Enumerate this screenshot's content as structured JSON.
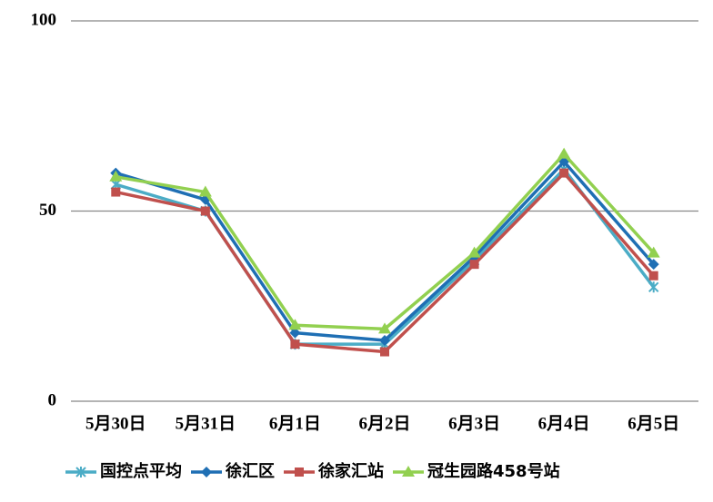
{
  "chart_data": {
    "type": "line",
    "categories": [
      "5月30日",
      "5月31日",
      "6月1日",
      "6月2日",
      "6月3日",
      "6月4日",
      "6月5日"
    ],
    "series": [
      {
        "name": "国控点平均",
        "color": "#4bacc6",
        "marker": "star",
        "values": [
          57,
          50,
          15,
          15,
          37,
          61,
          30
        ]
      },
      {
        "name": "徐汇区",
        "color": "#1f6fb4",
        "marker": "diamond",
        "values": [
          60,
          53,
          18,
          16,
          38,
          63,
          36
        ]
      },
      {
        "name": "徐家汇站",
        "color": "#c0504d",
        "marker": "square",
        "values": [
          55,
          50,
          15,
          13,
          36,
          60,
          33
        ]
      },
      {
        "name": "冠生园路458号站",
        "color": "#92d050",
        "marker": "triangle",
        "values": [
          59,
          55,
          20,
          19,
          39,
          65,
          39
        ]
      }
    ],
    "ylim": [
      0,
      100
    ],
    "yticks": [
      0,
      50,
      100
    ],
    "grid": true,
    "legend": "bottom"
  }
}
